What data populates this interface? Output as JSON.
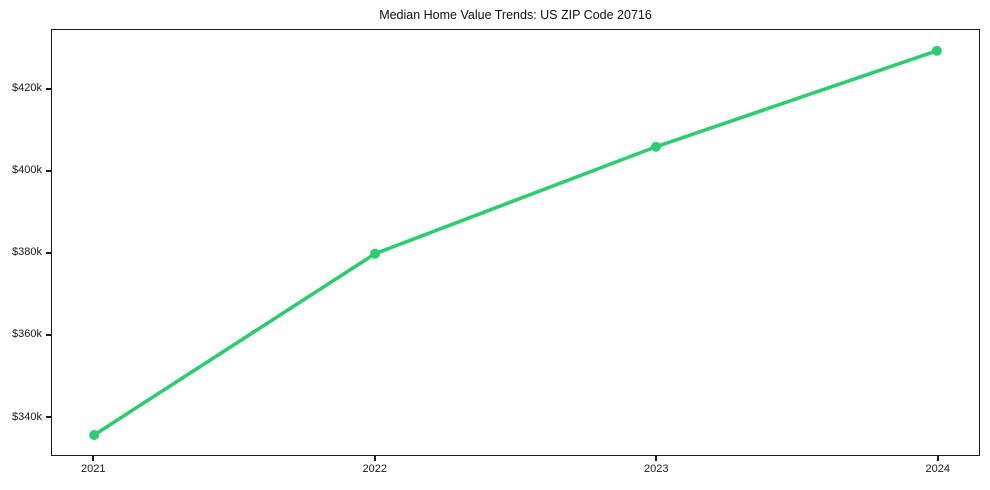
{
  "figure": {
    "title": "Median Home Value Trends: US ZIP Code 20716"
  },
  "chart_data": {
    "type": "line",
    "title": "Median Home Value Trends: US ZIP Code 20716",
    "xlabel": "",
    "ylabel": "",
    "x": [
      2021,
      2022,
      2023,
      2024
    ],
    "series": [
      {
        "name": "Median home value",
        "values": [
          335400,
          379800,
          406000,
          429500
        ],
        "color": "#2ecc71"
      }
    ],
    "x_tick_labels": [
      "2021",
      "2022",
      "2023",
      "2024"
    ],
    "y_ticks": [
      {
        "value": 340000,
        "label": "$340k"
      },
      {
        "value": 360000,
        "label": "$360k"
      },
      {
        "value": 380000,
        "label": "$380k"
      },
      {
        "value": 400000,
        "label": "$400k"
      },
      {
        "value": 420000,
        "label": "$420k"
      }
    ],
    "xlim": [
      2020.85,
      2024.15
    ],
    "ylim": [
      330500,
      434600
    ],
    "grid": false,
    "legend": "none",
    "marker": "circle",
    "line_width": 3.6,
    "marker_radius": 5,
    "axis_color": "#1a1a1a",
    "background": "#ffffff"
  }
}
